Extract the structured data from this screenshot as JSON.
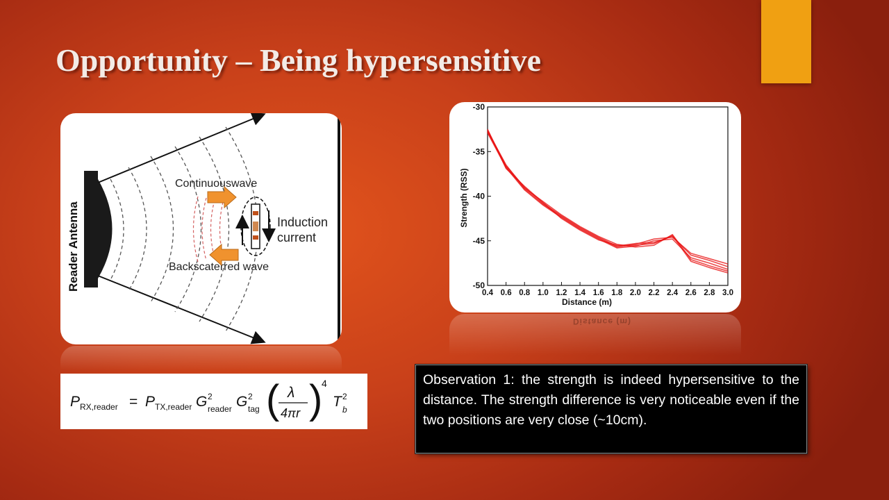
{
  "slide": {
    "title": "Opportunity – Being hypersensitive",
    "accent_color": "#f0a012",
    "background_color": "#c8401a"
  },
  "diagram": {
    "antenna_label": "Reader Antenna",
    "continuous_wave_label": "Continuouswave",
    "induction_label_1": "Induction",
    "induction_label_2": "current",
    "backscattered_label": "Backscaterred wave"
  },
  "formula": {
    "lhs": "P",
    "lhs_sub": "RX,reader",
    "eq": "=",
    "p": "P",
    "p_sub": "TX,reader",
    "g1": "G",
    "g1_sup": "2",
    "g1_sub": "reader",
    "g2": "G",
    "g2_sup": "2",
    "g2_sub": "tag",
    "num": "λ",
    "den": "4πr",
    "power": "4",
    "t": "T",
    "t_sup": "2",
    "t_sub": "b"
  },
  "chart_data": {
    "type": "line",
    "xlabel": "Distance (m)",
    "ylabel": "Strength (RSS)",
    "xlim": [
      0.4,
      3.0
    ],
    "ylim": [
      -50,
      -30
    ],
    "x_ticks": [
      "0.4",
      "0.6",
      "0.8",
      "1.0",
      "1.2",
      "1.4",
      "1.6",
      "1.8",
      "2.0",
      "2.2",
      "2.4",
      "2.6",
      "2.8",
      "3.0"
    ],
    "y_ticks": [
      "-30",
      "-35",
      "-40",
      "-45",
      "-50"
    ],
    "line_color": "#e81010",
    "x": [
      0.4,
      0.6,
      0.8,
      1.0,
      1.2,
      1.4,
      1.6,
      1.8,
      2.0,
      2.2,
      2.4,
      2.6,
      2.8,
      3.0
    ],
    "series": [
      {
        "values": [
          -32.6,
          -36.6,
          -39.0,
          -40.8,
          -42.2,
          -43.5,
          -44.6,
          -45.6,
          -45.3,
          -45.2,
          -44.5,
          -46.6,
          -47.2,
          -47.9
        ]
      },
      {
        "values": [
          -32.9,
          -36.8,
          -39.3,
          -41.0,
          -42.4,
          -43.7,
          -44.8,
          -45.8,
          -45.6,
          -45.0,
          -44.8,
          -46.9,
          -47.5,
          -48.2
        ]
      },
      {
        "values": [
          -32.7,
          -36.5,
          -39.1,
          -40.6,
          -42.1,
          -43.4,
          -44.5,
          -45.4,
          -45.7,
          -45.5,
          -44.3,
          -47.1,
          -47.8,
          -48.4
        ]
      },
      {
        "values": [
          -32.8,
          -36.7,
          -39.2,
          -40.9,
          -42.3,
          -43.6,
          -44.7,
          -45.7,
          -45.4,
          -44.8,
          -44.6,
          -46.4,
          -47.0,
          -47.6
        ]
      },
      {
        "values": [
          -32.5,
          -36.9,
          -38.9,
          -40.7,
          -42.5,
          -43.8,
          -44.9,
          -45.5,
          -45.5,
          -45.3,
          -44.4,
          -47.3,
          -48.0,
          -48.6
        ]
      }
    ]
  },
  "observation": {
    "text": "Observation 1: the strength is indeed hypersensitive to the distance. The strength difference is very noticeable even if the two positions are very close (~10cm)."
  }
}
